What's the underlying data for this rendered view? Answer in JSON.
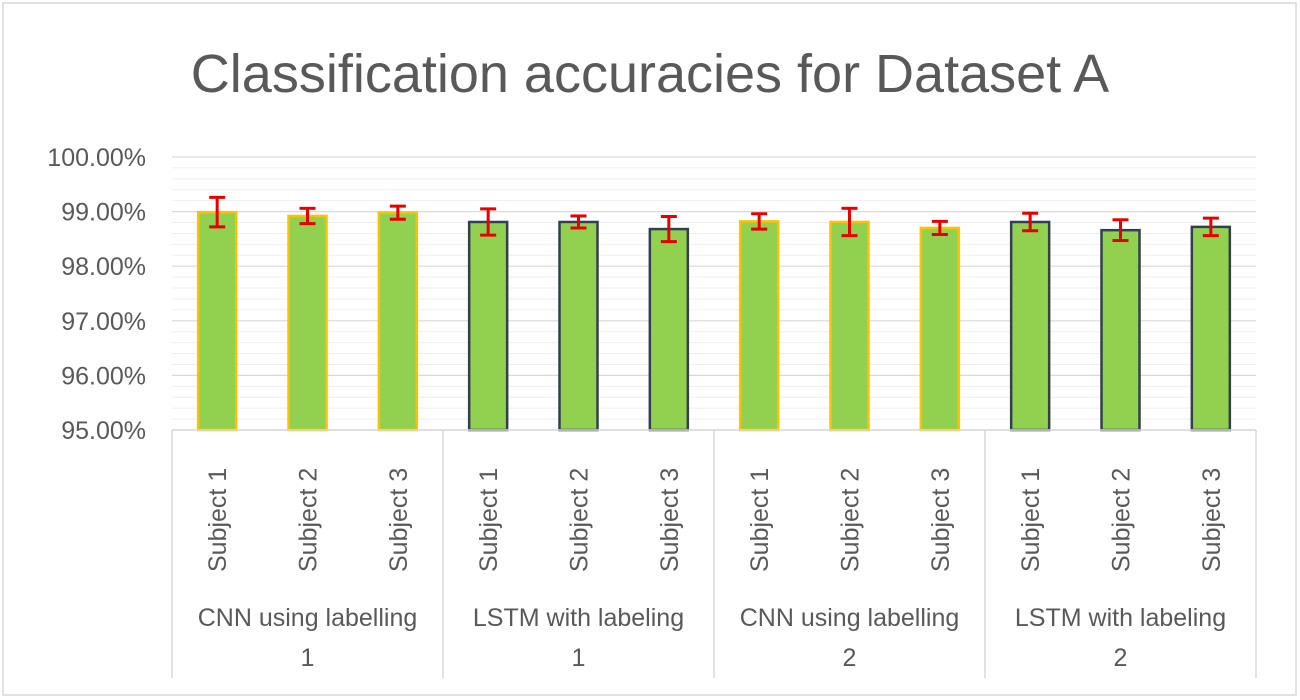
{
  "chart_data": {
    "type": "bar",
    "title": "Classification accuracies for Dataset A",
    "xlabel": "",
    "ylabel": "",
    "ylim": [
      0.95,
      1.0
    ],
    "yticks": [
      "95.00%",
      "96.00%",
      "97.00%",
      "98.00%",
      "99.00%",
      "100.00%"
    ],
    "ytick_values": [
      0.95,
      0.96,
      0.97,
      0.98,
      0.99,
      1.0
    ],
    "grid": true,
    "bar_fill": "#92d050",
    "groups": [
      {
        "label_lines": [
          "CNN using labelling",
          "1"
        ],
        "border_color": "#ffc000",
        "categories": [
          "Subject 1",
          "Subject 2",
          "Subject 3"
        ],
        "values": [
          0.9899,
          0.9892,
          0.9898
        ],
        "errors": [
          0.0027,
          0.0014,
          0.0012
        ]
      },
      {
        "label_lines": [
          "LSTM with labeling",
          "1"
        ],
        "border_color": "#333f4f",
        "categories": [
          "Subject 1",
          "Subject 2",
          "Subject 3"
        ],
        "values": [
          0.9881,
          0.9881,
          0.9868
        ],
        "errors": [
          0.0024,
          0.0011,
          0.0023
        ]
      },
      {
        "label_lines": [
          "CNN using labelling",
          "2"
        ],
        "border_color": "#ffc000",
        "categories": [
          "Subject 1",
          "Subject 2",
          "Subject 3"
        ],
        "values": [
          0.9882,
          0.9881,
          0.987
        ],
        "errors": [
          0.0014,
          0.0025,
          0.0012
        ]
      },
      {
        "label_lines": [
          "LSTM with labeling",
          "2"
        ],
        "border_color": "#333f4f",
        "categories": [
          "Subject 1",
          "Subject 2",
          "Subject 3"
        ],
        "values": [
          0.9881,
          0.9866,
          0.9872
        ],
        "errors": [
          0.0016,
          0.0019,
          0.0016
        ]
      }
    ],
    "error_bar_color": "#e60000"
  }
}
